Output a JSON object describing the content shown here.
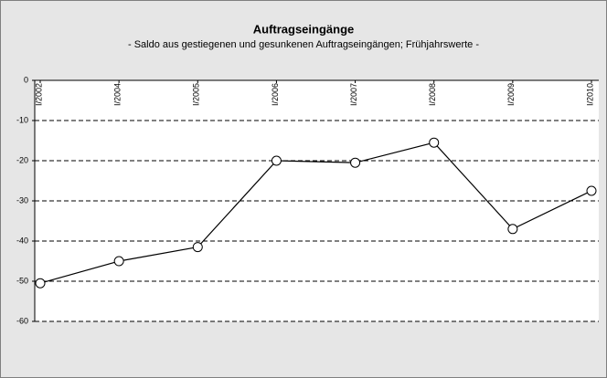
{
  "chart_data": {
    "type": "line",
    "title": "Auftragseingänge",
    "subtitle": "- Saldo aus gestiegenen und gesunkenen Auftragseingängen; Frühjahrswerte -",
    "categories": [
      "I/2002",
      "I/2004",
      "I/2005",
      "I/2006",
      "I/2007",
      "I/2008",
      "I/2009",
      "I/2010"
    ],
    "values": [
      -50.5,
      -45,
      -41.5,
      -20,
      -20.5,
      -15.5,
      -37,
      -27.5
    ],
    "color": "#000000",
    "ylim": [
      -60,
      0
    ],
    "yticks": [
      0,
      -10,
      -20,
      -30,
      -40,
      -50,
      -60
    ],
    "grid": true
  }
}
